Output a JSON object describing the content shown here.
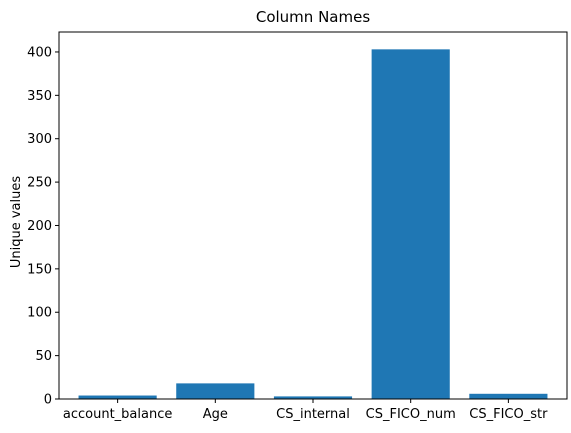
{
  "chart_data": {
    "type": "bar",
    "title": "Column Names",
    "xlabel": "",
    "ylabel": "Unique values",
    "categories": [
      "account_balance",
      "Age",
      "CS_internal",
      "CS_FICO_num",
      "CS_FICO_str"
    ],
    "values": [
      4,
      18,
      3,
      403,
      6
    ],
    "ylim": [
      0,
      423
    ],
    "yticks": [
      0,
      50,
      100,
      150,
      200,
      250,
      300,
      350,
      400
    ],
    "grid": false,
    "bar_color": "#1f77b4"
  }
}
